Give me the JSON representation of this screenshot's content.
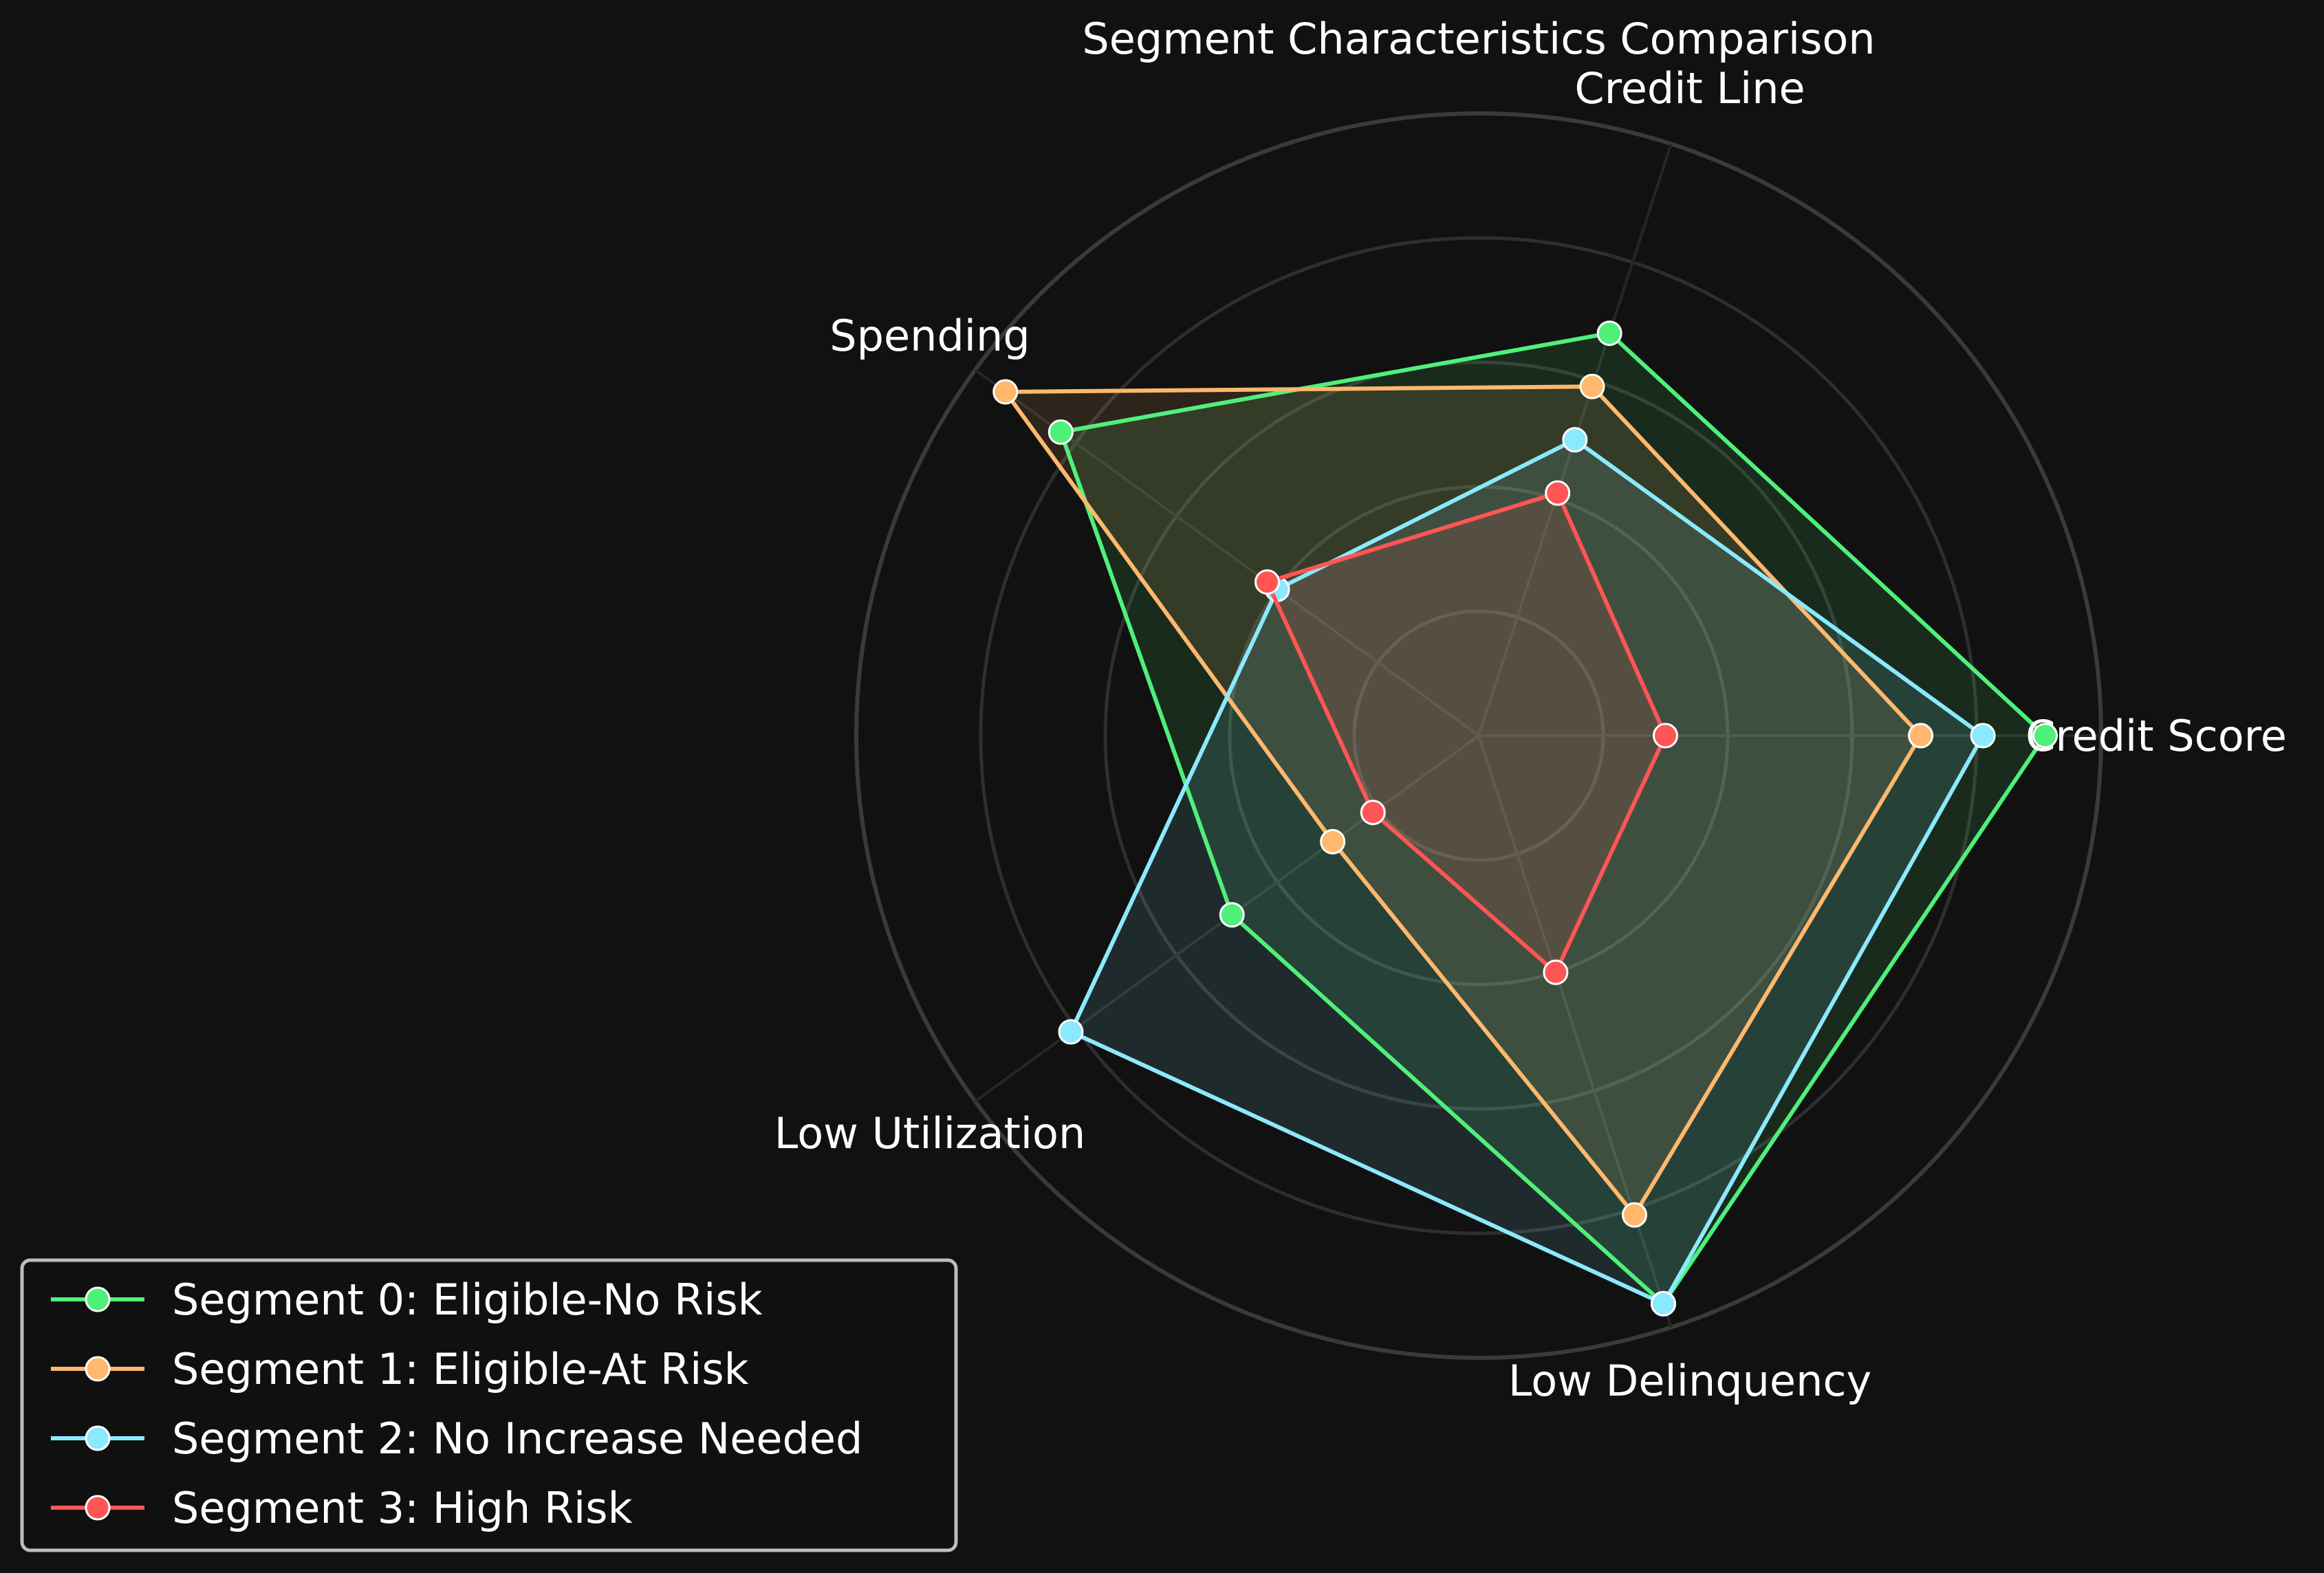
{
  "chart_data": {
    "type": "radar",
    "title": "Segment Characteristics Comparison",
    "axes": [
      "Credit Score",
      "Credit Line",
      "Spending",
      "Low Utilization",
      "Low Delinquency"
    ],
    "rlim": [
      0,
      1
    ],
    "grid": true,
    "legend_position": "lower-left",
    "series": [
      {
        "name": "Segment 0: Eligible-No Risk",
        "color": "#4ff07a",
        "values": [
          0.91,
          0.68,
          0.83,
          0.49,
          0.96
        ]
      },
      {
        "name": "Segment 1: Eligible-At Risk",
        "color": "#ffb86c",
        "values": [
          0.71,
          0.59,
          0.94,
          0.29,
          0.81
        ]
      },
      {
        "name": "Segment 2: No Increase Needed",
        "color": "#8be9fd",
        "values": [
          0.81,
          0.5,
          0.4,
          0.81,
          0.96
        ]
      },
      {
        "name": "Segment 3: High Risk",
        "color": "#ff5555",
        "values": [
          0.3,
          0.41,
          0.42,
          0.21,
          0.4
        ]
      }
    ]
  }
}
